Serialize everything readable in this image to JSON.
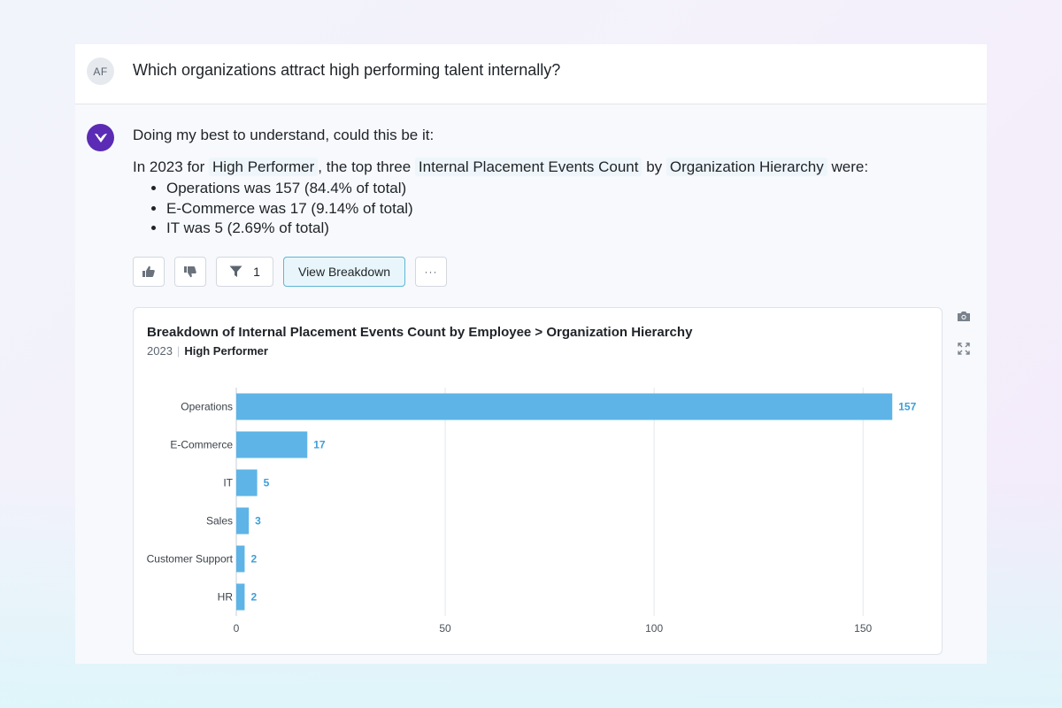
{
  "user": {
    "initials": "AF",
    "question": "Which organizations attract high performing talent internally?"
  },
  "answer": {
    "intro": "Doing my best to understand, could this be it:",
    "summary": {
      "prefix": "In 2023 for",
      "chip1": "High Performer",
      "middle1": ", the top three",
      "chip2": "Internal Placement Events Count",
      "middle2": "by",
      "chip3": "Organization Hierarchy",
      "suffix": "were:"
    },
    "bullets": [
      "Operations was 157 (84.4% of total)",
      "E-Commerce was 17 (9.14% of total)",
      "IT was 5 (2.69% of total)"
    ]
  },
  "toolbar": {
    "filter_count": "1",
    "view_breakdown_label": "View Breakdown",
    "more_label": "···"
  },
  "icons": {
    "thumbs_up": "thumbs-up-icon",
    "thumbs_down": "thumbs-down-icon",
    "filter": "filter-icon",
    "camera": "camera-icon",
    "expand": "expand-icon",
    "bot": "bot-logo-icon"
  },
  "colors": {
    "bar": "#5eb4e6",
    "value_label": "#3d9fd6",
    "bot_avatar": "#5b2bb5",
    "primary_border": "#5fb6d6"
  },
  "chart_data": {
    "type": "bar",
    "orientation": "horizontal",
    "title": "Breakdown of Internal Placement Events Count by Employee > Organization Hierarchy",
    "subtitle_year": "2023",
    "subtitle_filter": "High Performer",
    "categories": [
      "Operations",
      "E-Commerce",
      "IT",
      "Sales",
      "Customer Support",
      "HR"
    ],
    "values": [
      157,
      17,
      5,
      3,
      2,
      2
    ],
    "xlim": [
      0,
      165
    ],
    "xticks": [
      0,
      50,
      100,
      150
    ],
    "grid": true,
    "legend": "none"
  }
}
